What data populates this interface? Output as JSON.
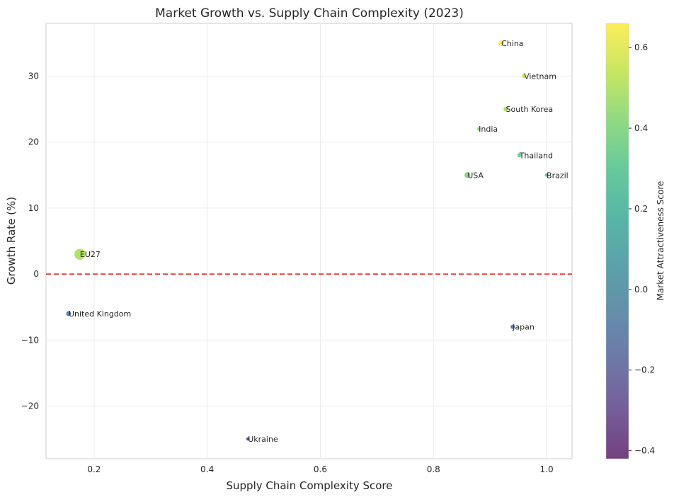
{
  "chart_data": {
    "type": "scatter",
    "title": "Market Growth vs. Supply Chain Complexity (2023)",
    "xlabel": "Supply Chain Complexity Score",
    "ylabel": "Growth Rate (%)",
    "xlim": [
      0.115,
      1.045
    ],
    "ylim": [
      -28,
      38
    ],
    "xticks": [
      0.2,
      0.4,
      0.6,
      0.8,
      1.0
    ],
    "xtick_labels": [
      "0.2",
      "0.4",
      "0.6",
      "0.8",
      "1.0"
    ],
    "yticks": [
      -20,
      -10,
      0,
      10,
      20,
      30
    ],
    "ytick_labels": [
      "−20",
      "−10",
      "0",
      "10",
      "20",
      "30"
    ],
    "grid": true,
    "reference_line": {
      "y": 0,
      "style": "dashed",
      "color": "#e0403a"
    },
    "colorbar": {
      "label": "Market Attractiveness Score",
      "colormap": "viridis",
      "range": [
        -0.42,
        0.66
      ],
      "ticks": [
        -0.4,
        -0.2,
        0.0,
        0.2,
        0.4,
        0.6
      ],
      "tick_labels": [
        "−0.4",
        "−0.2",
        "0.0",
        "0.2",
        "0.4",
        "0.6"
      ]
    },
    "points": [
      {
        "label": "China",
        "x": 0.92,
        "y": 35,
        "score": 0.66,
        "size": 1.0
      },
      {
        "label": "Vietnam",
        "x": 0.96,
        "y": 30,
        "score": 0.55,
        "size": 0.5
      },
      {
        "label": "South Korea",
        "x": 0.928,
        "y": 25,
        "score": 0.5,
        "size": 0.7
      },
      {
        "label": "India",
        "x": 0.88,
        "y": 22,
        "score": 0.45,
        "size": 0.35
      },
      {
        "label": "Thailand",
        "x": 0.952,
        "y": 18,
        "score": 0.35,
        "size": 0.5
      },
      {
        "label": "USA",
        "x": 0.86,
        "y": 15,
        "score": 0.4,
        "size": 1.1
      },
      {
        "label": "Brazil",
        "x": 1.0,
        "y": 15,
        "score": 0.3,
        "size": 0.35
      },
      {
        "label": "EU27",
        "x": 0.175,
        "y": 3,
        "score": 0.5,
        "size": 4.0
      },
      {
        "label": "United Kingdom",
        "x": 0.155,
        "y": -6,
        "score": -0.1,
        "size": 0.75
      },
      {
        "label": "Japan",
        "x": 0.94,
        "y": -8,
        "score": -0.12,
        "size": 0.55
      },
      {
        "label": "Ukraine",
        "x": 0.472,
        "y": -25,
        "score": -0.38,
        "size": 0.3
      }
    ]
  }
}
